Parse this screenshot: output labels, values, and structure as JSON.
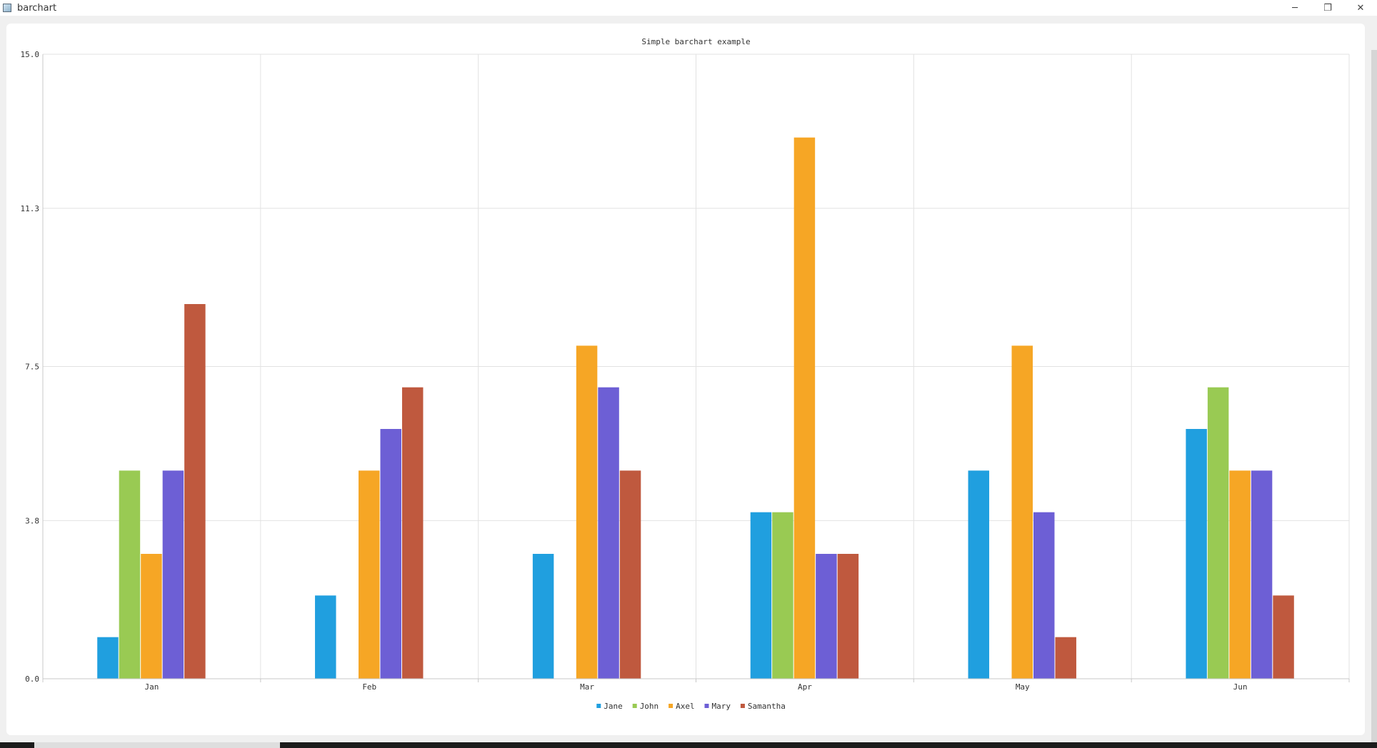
{
  "window": {
    "title": "barchart",
    "minimize_label": "─",
    "restore_label": "❐",
    "close_label": "✕"
  },
  "chart_data": {
    "type": "bar",
    "title": "Simple barchart example",
    "categories": [
      "Jan",
      "Feb",
      "Mar",
      "Apr",
      "May",
      "Jun"
    ],
    "series": [
      {
        "name": "Jane",
        "color": "#209fdf",
        "values": [
          1,
          2,
          3,
          4,
          5,
          6
        ]
      },
      {
        "name": "John",
        "color": "#99ca53",
        "values": [
          5,
          0,
          0,
          4,
          0,
          7
        ]
      },
      {
        "name": "Axel",
        "color": "#f6a625",
        "values": [
          3,
          5,
          8,
          13,
          8,
          5
        ]
      },
      {
        "name": "Mary",
        "color": "#6d5fd5",
        "values": [
          5,
          6,
          7,
          3,
          4,
          5
        ]
      },
      {
        "name": "Samantha",
        "color": "#bf593e",
        "values": [
          9,
          7,
          5,
          3,
          1,
          2
        ]
      }
    ],
    "ylim": [
      0,
      15
    ],
    "yticks": [
      "0.0",
      "3.8",
      "7.5",
      "11.3",
      "15.0"
    ],
    "xlabel": "",
    "ylabel": "",
    "grid": true,
    "legend_position": "bottom"
  }
}
